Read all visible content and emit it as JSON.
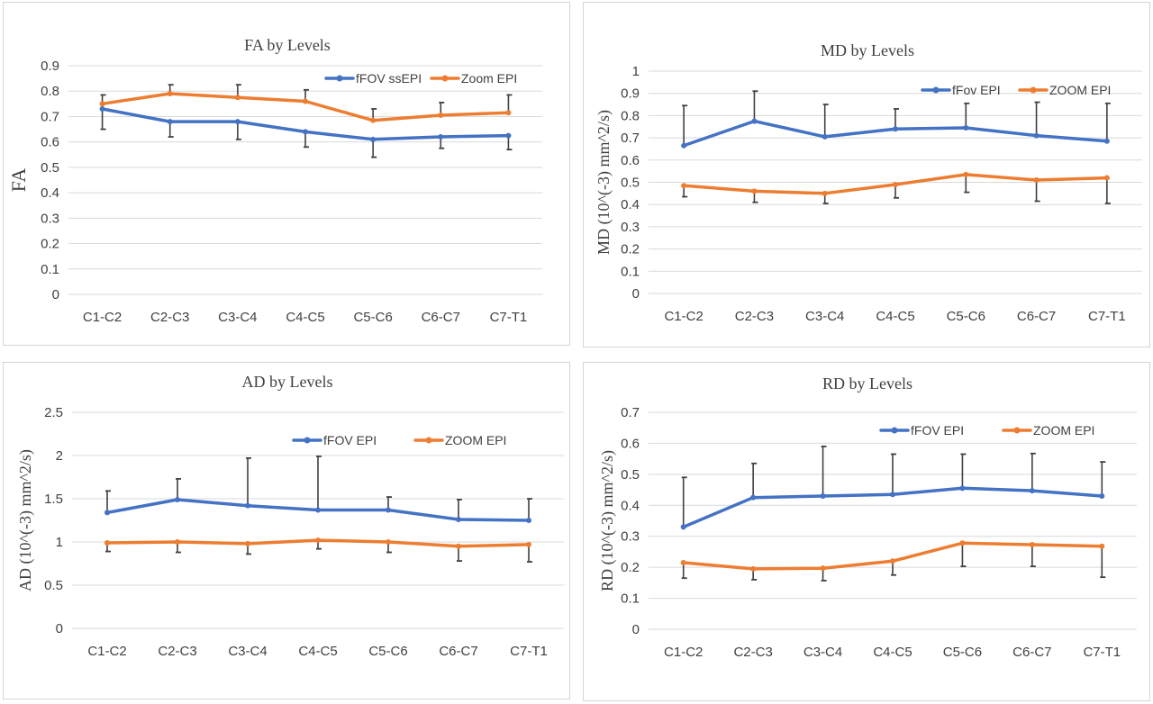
{
  "chart_data": [
    {
      "type": "line",
      "title": "FA by Levels",
      "ylabel": "FA",
      "categories": [
        "C1-C2",
        "C2-C3",
        "C3-C4",
        "C4-C5",
        "C5-C6",
        "C6-C7",
        "C7-T1"
      ],
      "yticks": [
        "0",
        "0.1",
        "0.2",
        "0.3",
        "0.4",
        "0.5",
        "0.6",
        "0.7",
        "0.8",
        "0.9"
      ],
      "ylim": [
        0,
        0.9
      ],
      "grid": true,
      "legend": "top-right",
      "series": [
        {
          "name": "fFOV ssEPI",
          "color": "#4472C4",
          "values": [
            0.73,
            0.68,
            0.68,
            0.64,
            0.61,
            0.62,
            0.625
          ],
          "err_lower": [
            0.08,
            0.06,
            0.07,
            0.06,
            0.07,
            0.045,
            0.055
          ]
        },
        {
          "name": "Zoom EPI",
          "color": "#ED7D31",
          "values": [
            0.75,
            0.79,
            0.775,
            0.76,
            0.685,
            0.705,
            0.715
          ],
          "err_upper": [
            0.035,
            0.035,
            0.05,
            0.045,
            0.045,
            0.05,
            0.07
          ]
        }
      ]
    },
    {
      "type": "line",
      "title": "MD by Levels",
      "ylabel": "MD (10^(-3) mm^2/s)",
      "categories": [
        "C1-C2",
        "C2-C3",
        "C3-C4",
        "C4-C5",
        "C5-C6",
        "C6-C7",
        "C7-T1"
      ],
      "yticks": [
        "0",
        "0.1",
        "0.2",
        "0.3",
        "0.4",
        "0.5",
        "0.6",
        "0.7",
        "0.8",
        "0.9",
        "1"
      ],
      "ylim": [
        0,
        1
      ],
      "grid": true,
      "legend": "top-right",
      "series": [
        {
          "name": "fFov EPI",
          "color": "#4472C4",
          "values": [
            0.665,
            0.775,
            0.705,
            0.74,
            0.745,
            0.71,
            0.685
          ],
          "err_upper": [
            0.18,
            0.135,
            0.145,
            0.09,
            0.11,
            0.15,
            0.17
          ]
        },
        {
          "name": "ZOOM EPI",
          "color": "#ED7D31",
          "values": [
            0.485,
            0.46,
            0.45,
            0.49,
            0.535,
            0.51,
            0.52
          ],
          "err_lower": [
            0.05,
            0.05,
            0.045,
            0.06,
            0.08,
            0.095,
            0.115
          ]
        }
      ]
    },
    {
      "type": "line",
      "title": "AD by Levels",
      "ylabel": "AD (10^(-3) mm^2/s)",
      "categories": [
        "C1-C2",
        "C2-C3",
        "C3-C4",
        "C4-C5",
        "C5-C6",
        "C6-C7",
        "C7-T1"
      ],
      "yticks": [
        "0",
        "0.5",
        "1",
        "1.5",
        "2",
        "2.5"
      ],
      "ylim": [
        0,
        2.5
      ],
      "grid": true,
      "legend": "top-right",
      "series": [
        {
          "name": "fFOV EPI",
          "color": "#4472C4",
          "values": [
            1.34,
            1.49,
            1.42,
            1.37,
            1.37,
            1.26,
            1.25
          ],
          "err_upper": [
            0.25,
            0.24,
            0.55,
            0.62,
            0.15,
            0.23,
            0.25
          ]
        },
        {
          "name": "ZOOM EPI",
          "color": "#ED7D31",
          "values": [
            0.99,
            1.0,
            0.98,
            1.02,
            1.0,
            0.95,
            0.97
          ],
          "err_lower": [
            0.1,
            0.12,
            0.12,
            0.1,
            0.12,
            0.17,
            0.2
          ]
        }
      ]
    },
    {
      "type": "line",
      "title": "RD by Levels",
      "ylabel": "RD (10^(-3) mm^2/s)",
      "categories": [
        "C1-C2",
        "C2-C3",
        "C3-C4",
        "C4-C5",
        "C5-C6",
        "C6-C7",
        "C7-T1"
      ],
      "yticks": [
        "0",
        "0.1",
        "0.2",
        "0.3",
        "0.4",
        "0.5",
        "0.6",
        "0.7"
      ],
      "ylim": [
        0,
        0.7
      ],
      "grid": true,
      "legend": "top-right",
      "series": [
        {
          "name": "fFOV EPI",
          "color": "#4472C4",
          "values": [
            0.33,
            0.425,
            0.43,
            0.435,
            0.455,
            0.447,
            0.43
          ],
          "err_upper": [
            0.16,
            0.11,
            0.16,
            0.13,
            0.11,
            0.12,
            0.11
          ]
        },
        {
          "name": "ZOOM EPI",
          "color": "#ED7D31",
          "values": [
            0.215,
            0.195,
            0.197,
            0.22,
            0.278,
            0.273,
            0.268
          ],
          "err_lower": [
            0.05,
            0.035,
            0.04,
            0.045,
            0.075,
            0.07,
            0.1
          ]
        }
      ]
    }
  ]
}
